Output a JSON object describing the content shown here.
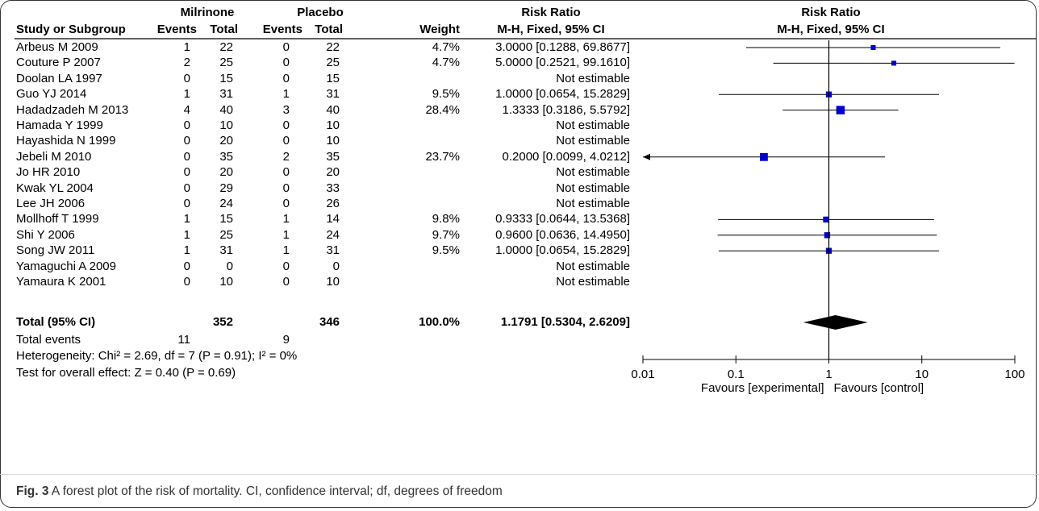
{
  "chart_data": {
    "type": "forest",
    "headers": {
      "group1": "Milrinone",
      "group2": "Placebo",
      "study": "Study or Subgroup",
      "events": "Events",
      "total": "Total",
      "weight": "Weight",
      "rr_title": "Risk Ratio",
      "rr_method": "M-H, Fixed, 95% CI",
      "plot_title": "Risk Ratio",
      "plot_method": "M-H, Fixed, 95% CI"
    },
    "studies": [
      {
        "study": "Arbeus M 2009",
        "e1": "1",
        "n1": "22",
        "e2": "0",
        "n2": "22",
        "weight": "4.7%",
        "ci_text": "3.0000 [0.1288, 69.8677]",
        "rr": 3.0,
        "lo": 0.1288,
        "hi": 69.8677,
        "w": 4.7
      },
      {
        "study": "Couture P 2007",
        "e1": "2",
        "n1": "25",
        "e2": "0",
        "n2": "25",
        "weight": "4.7%",
        "ci_text": "5.0000 [0.2521, 99.1610]",
        "rr": 5.0,
        "lo": 0.2521,
        "hi": 99.161,
        "w": 4.7
      },
      {
        "study": "Doolan LA 1997",
        "e1": "0",
        "n1": "15",
        "e2": "0",
        "n2": "15",
        "weight": "",
        "ci_text": "Not estimable",
        "rr": null,
        "lo": null,
        "hi": null,
        "w": 0
      },
      {
        "study": "Guo YJ 2014",
        "e1": "1",
        "n1": "31",
        "e2": "1",
        "n2": "31",
        "weight": "9.5%",
        "ci_text": "1.0000 [0.0654, 15.2829]",
        "rr": 1.0,
        "lo": 0.0654,
        "hi": 15.2829,
        "w": 9.5
      },
      {
        "study": "Hadadzadeh M 2013",
        "e1": "4",
        "n1": "40",
        "e2": "3",
        "n2": "40",
        "weight": "28.4%",
        "ci_text": "1.3333 [0.3186, 5.5792]",
        "rr": 1.3333,
        "lo": 0.3186,
        "hi": 5.5792,
        "w": 28.4
      },
      {
        "study": "Hamada Y 1999",
        "e1": "0",
        "n1": "10",
        "e2": "0",
        "n2": "10",
        "weight": "",
        "ci_text": "Not estimable",
        "rr": null,
        "lo": null,
        "hi": null,
        "w": 0
      },
      {
        "study": "Hayashida N 1999",
        "e1": "0",
        "n1": "20",
        "e2": "0",
        "n2": "10",
        "weight": "",
        "ci_text": "Not estimable",
        "rr": null,
        "lo": null,
        "hi": null,
        "w": 0
      },
      {
        "study": "Jebeli M 2010",
        "e1": "0",
        "n1": "35",
        "e2": "2",
        "n2": "35",
        "weight": "23.7%",
        "ci_text": "0.2000 [0.0099, 4.0212]",
        "rr": 0.2,
        "lo": 0.0099,
        "hi": 4.0212,
        "w": 23.7
      },
      {
        "study": "Jo HR 2010",
        "e1": "0",
        "n1": "20",
        "e2": "0",
        "n2": "20",
        "weight": "",
        "ci_text": "Not estimable",
        "rr": null,
        "lo": null,
        "hi": null,
        "w": 0
      },
      {
        "study": "Kwak YL 2004",
        "e1": "0",
        "n1": "29",
        "e2": "0",
        "n2": "33",
        "weight": "",
        "ci_text": "Not estimable",
        "rr": null,
        "lo": null,
        "hi": null,
        "w": 0
      },
      {
        "study": "Lee JH 2006",
        "e1": "0",
        "n1": "24",
        "e2": "0",
        "n2": "26",
        "weight": "",
        "ci_text": "Not estimable",
        "rr": null,
        "lo": null,
        "hi": null,
        "w": 0
      },
      {
        "study": "Mollhoff T 1999",
        "e1": "1",
        "n1": "15",
        "e2": "1",
        "n2": "14",
        "weight": "9.8%",
        "ci_text": "0.9333 [0.0644, 13.5368]",
        "rr": 0.9333,
        "lo": 0.0644,
        "hi": 13.5368,
        "w": 9.8
      },
      {
        "study": "Shi Y 2006",
        "e1": "1",
        "n1": "25",
        "e2": "1",
        "n2": "24",
        "weight": "9.7%",
        "ci_text": "0.9600 [0.0636, 14.4950]",
        "rr": 0.96,
        "lo": 0.0636,
        "hi": 14.495,
        "w": 9.7
      },
      {
        "study": "Song JW 2011",
        "e1": "1",
        "n1": "31",
        "e2": "1",
        "n2": "31",
        "weight": "9.5%",
        "ci_text": "1.0000 [0.0654, 15.2829]",
        "rr": 1.0,
        "lo": 0.0654,
        "hi": 15.2829,
        "w": 9.5
      },
      {
        "study": "Yamaguchi A 2009",
        "e1": "0",
        "n1": "0",
        "e2": "0",
        "n2": "0",
        "weight": "",
        "ci_text": "Not estimable",
        "rr": null,
        "lo": null,
        "hi": null,
        "w": 0
      },
      {
        "study": "Yamaura K 2001",
        "e1": "0",
        "n1": "10",
        "e2": "0",
        "n2": "10",
        "weight": "",
        "ci_text": "Not estimable",
        "rr": null,
        "lo": null,
        "hi": null,
        "w": 0
      }
    ],
    "total": {
      "label": "Total (95% CI)",
      "n1": "352",
      "n2": "346",
      "weight": "100.0%",
      "ci_text": "1.1791 [0.5304, 2.6209]",
      "rr": 1.1791,
      "lo": 0.5304,
      "hi": 2.6209
    },
    "total_events": {
      "label": "Total events",
      "e1": "11",
      "e2": "9"
    },
    "heterogeneity": "Heterogeneity: Chi² = 2.69, df = 7 (P = 0.91); I² = 0%",
    "overall_effect": "Test for overall effect: Z = 0.40 (P = 0.69)",
    "axis": {
      "scale": "log",
      "ticks": [
        0.01,
        0.1,
        1,
        10,
        100
      ],
      "tick_labels": [
        "0.01",
        "0.1",
        "1",
        "10",
        "100"
      ],
      "xlim": [
        0.01,
        100
      ],
      "favours_left": "Favours [experimental]",
      "favours_right": "Favours [control]"
    },
    "colors": {
      "marker": "#0000cc",
      "line": "#000000",
      "diamond": "#000000"
    }
  },
  "caption": {
    "label": "Fig. 3",
    "text": " A forest plot of the risk of mortality. CI, confidence interval; df, degrees of freedom"
  }
}
